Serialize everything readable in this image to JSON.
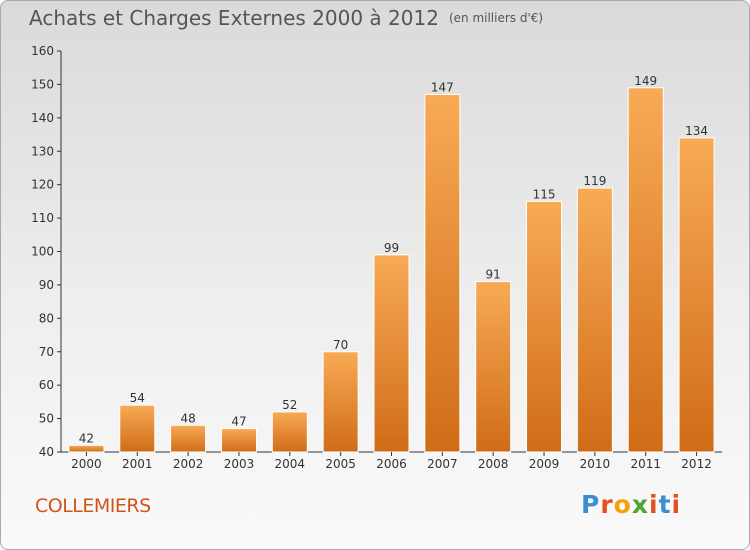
{
  "title": "Achats et Charges Externes 2000 à 2012",
  "unit": "(en milliers d'€)",
  "commune": "COLLEMIERS",
  "brand": {
    "letters": [
      "P",
      "r",
      "o",
      "x",
      "i",
      "t",
      "i"
    ],
    "colors": [
      "#3a8fd0",
      "#e2521d",
      "#f2a20a",
      "#4ca630",
      "#e2521d",
      "#3a8fd0",
      "#e2521d"
    ]
  },
  "colors": {
    "bar_light": "#f8aa55",
    "bar_dark": "#d06c18",
    "accent": "#d0541a"
  },
  "chart_data": {
    "type": "bar",
    "categories": [
      "2000",
      "2001",
      "2002",
      "2003",
      "2004",
      "2005",
      "2006",
      "2007",
      "2008",
      "2009",
      "2010",
      "2011",
      "2012"
    ],
    "values": [
      42,
      54,
      48,
      47,
      52,
      70,
      99,
      147,
      91,
      115,
      119,
      149,
      134
    ],
    "ylim": [
      40,
      160
    ],
    "yticks": [
      40,
      50,
      60,
      70,
      80,
      90,
      100,
      110,
      120,
      130,
      140,
      150,
      160
    ],
    "grid": false,
    "legend": "none"
  }
}
